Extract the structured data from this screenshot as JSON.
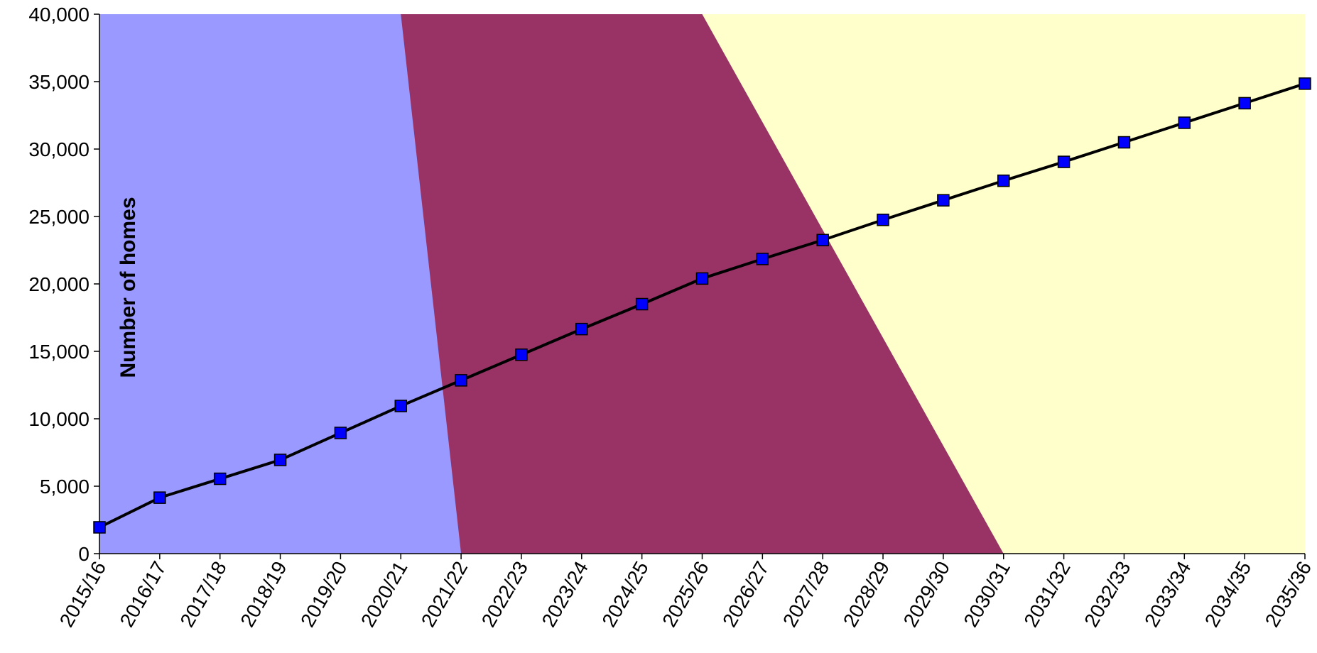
{
  "chart_data": {
    "type": "line",
    "title": "",
    "xlabel": "",
    "ylabel": "Number of homes",
    "ylim": [
      0,
      40000
    ],
    "yticks": [
      0,
      5000,
      10000,
      15000,
      20000,
      25000,
      30000,
      35000,
      40000
    ],
    "ytick_labels": [
      "0",
      "5,000",
      "10,000",
      "15,000",
      "20,000",
      "25,000",
      "30,000",
      "35,000",
      "40,000"
    ],
    "categories": [
      "2015/16",
      "2016/17",
      "2017/18",
      "2018/19",
      "2019/20",
      "2020/21",
      "2021/22",
      "2022/23",
      "2023/24",
      "2024/25",
      "2025/26",
      "2026/27",
      "2027/28",
      "2028/29",
      "2029/30",
      "2030/31",
      "2031/32",
      "2032/33",
      "2033/34",
      "2034/35",
      "2035/36"
    ],
    "series": [
      {
        "values": [
          1950,
          4150,
          5550,
          6950,
          8950,
          10950,
          12850,
          14750,
          16650,
          18500,
          20400,
          21850,
          23250,
          24750,
          26200,
          27650,
          29050,
          30500,
          31950,
          33400,
          34850
        ],
        "color": "#0000ff",
        "line_color": "#000000",
        "marker": "square"
      }
    ],
    "grid": false,
    "legend": "none",
    "background_regions": [
      {
        "color": "#9999ff",
        "top_boundary_category": "2020/21",
        "bottom_boundary_category": "2021/22"
      },
      {
        "color": "#993366",
        "top_boundary_category": "2025/26",
        "bottom_boundary_category": "2030/31"
      },
      {
        "color": "#ffffcc"
      }
    ]
  }
}
